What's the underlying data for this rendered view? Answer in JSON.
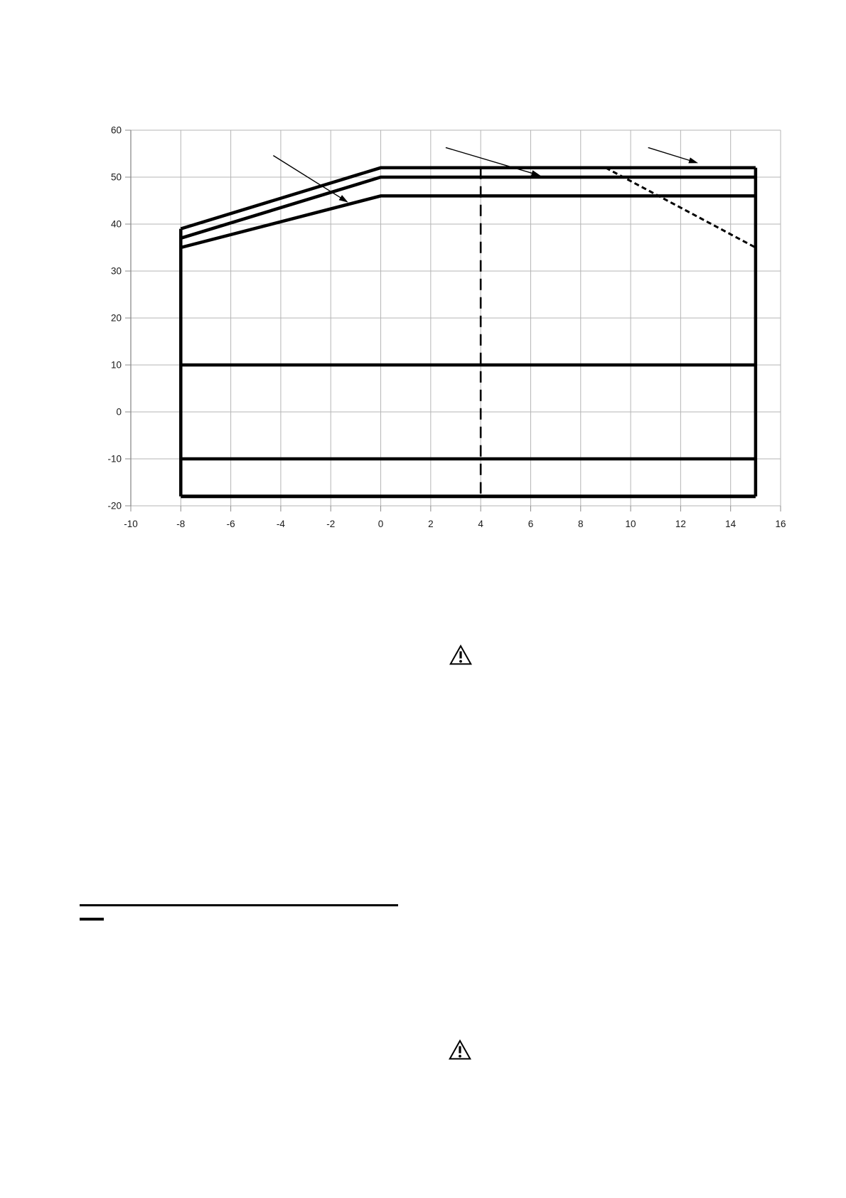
{
  "page": {
    "background": "#ffffff"
  },
  "chart_data": {
    "type": "line",
    "title": "",
    "xlabel": "",
    "ylabel": "",
    "xlim": [
      -10,
      16
    ],
    "ylim": [
      -20,
      60
    ],
    "x_ticks": [
      -10,
      -8,
      -6,
      -4,
      -2,
      0,
      2,
      4,
      6,
      8,
      10,
      12,
      14,
      16
    ],
    "y_ticks": [
      -20,
      -10,
      0,
      10,
      20,
      30,
      40,
      50,
      60
    ],
    "grid": true,
    "legend_position": "none",
    "colors": {
      "series": "#000000",
      "grid": "#b5b5b5",
      "axis": "#8c8c8c",
      "text": "#1a1a1a"
    },
    "series": [
      {
        "name": "upper-limit-line",
        "style": "solid",
        "width": 4.5,
        "points": [
          [
            -8,
            39
          ],
          [
            0,
            52
          ],
          [
            15,
            52
          ]
        ]
      },
      {
        "name": "middle-limit-line",
        "style": "solid",
        "width": 4.5,
        "points": [
          [
            -8,
            37
          ],
          [
            0,
            50
          ],
          [
            15,
            50
          ]
        ]
      },
      {
        "name": "lower-limit-line",
        "style": "solid",
        "width": 4.5,
        "points": [
          [
            -8,
            35
          ],
          [
            0,
            46
          ],
          [
            15,
            46
          ]
        ]
      },
      {
        "name": "left-boundary-line",
        "style": "solid",
        "width": 4.5,
        "points": [
          [
            -8,
            39
          ],
          [
            -8,
            -18
          ]
        ]
      },
      {
        "name": "right-boundary-line",
        "style": "solid",
        "width": 4.5,
        "points": [
          [
            15,
            52
          ],
          [
            15,
            -18
          ]
        ]
      },
      {
        "name": "bottom-boundary-line",
        "style": "solid",
        "width": 5,
        "points": [
          [
            -8,
            -18
          ],
          [
            15,
            -18
          ]
        ]
      },
      {
        "name": "horizontal-line-plus10",
        "style": "solid",
        "width": 4.5,
        "points": [
          [
            -8,
            10
          ],
          [
            15,
            10
          ]
        ]
      },
      {
        "name": "horizontal-line-minus10",
        "style": "solid",
        "width": 4.5,
        "points": [
          [
            -8,
            -10
          ],
          [
            15,
            -10
          ]
        ]
      },
      {
        "name": "derating-dashed-line",
        "style": "short-dash",
        "width": 3,
        "points": [
          [
            9,
            52
          ],
          [
            15,
            35
          ]
        ]
      },
      {
        "name": "vertical-reference-dashed-line",
        "style": "long-dash",
        "width": 2.6,
        "points": [
          [
            4,
            52
          ],
          [
            4,
            -18
          ]
        ]
      }
    ],
    "annotations": [
      {
        "name": "callout-arrow-1",
        "from": [
          -4.3,
          54.6
        ],
        "to": [
          -1.3,
          44.6
        ]
      },
      {
        "name": "callout-arrow-2",
        "from": [
          2.6,
          56.3
        ],
        "to": [
          6.4,
          50.3
        ]
      },
      {
        "name": "callout-arrow-3",
        "from": [
          10.7,
          56.3
        ],
        "to": [
          12.7,
          53.0
        ]
      }
    ]
  },
  "icons": {
    "warning_1": {
      "name": "warning-triangle-icon",
      "glyph": "!"
    },
    "warning_2": {
      "name": "warning-triangle-icon",
      "glyph": "!"
    }
  }
}
